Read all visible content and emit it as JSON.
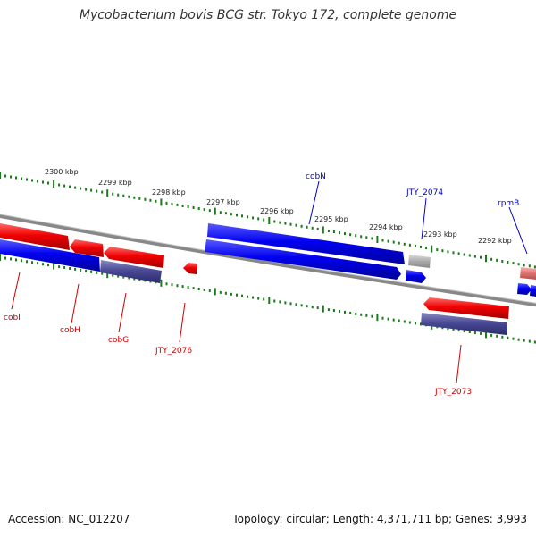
{
  "title": "Mycobacterium bovis BCG str. Tokyo 172, complete genome",
  "footer": {
    "accession": "Accession: NC_012207",
    "summary": "Topology: circular; Length: 4,371,711 bp; Genes: 3,993"
  },
  "kbp_ticks": [
    "2300 kbp",
    "2299 kbp",
    "2298 kbp",
    "2297 kbp",
    "2296 kbp",
    "2295 kbp",
    "2294 kbp",
    "2293 kbp",
    "2292 kbp"
  ],
  "gene_labels": [
    {
      "name": "cobN",
      "strand": "forward"
    },
    {
      "name": "JTY_2074",
      "strand": "forward"
    },
    {
      "name": "rpmB",
      "strand": "forward"
    },
    {
      "name": "cobI",
      "strand": "reverse"
    },
    {
      "name": "cobH",
      "strand": "reverse"
    },
    {
      "name": "cobG",
      "strand": "reverse"
    },
    {
      "name": "JTY_2076",
      "strand": "reverse"
    },
    {
      "name": "JTY_2073",
      "strand": "reverse"
    }
  ],
  "colors": {
    "forward_label": "#0000cc",
    "reverse_label": "#cc0000",
    "forward_gene": "#0000ee",
    "reverse_gene": "#ee0000",
    "pseudo_gene": "#aaaaaa",
    "tick_green": "#1a7a1a",
    "backbone": "#888888",
    "cds_dark": "#4a4a9a"
  }
}
